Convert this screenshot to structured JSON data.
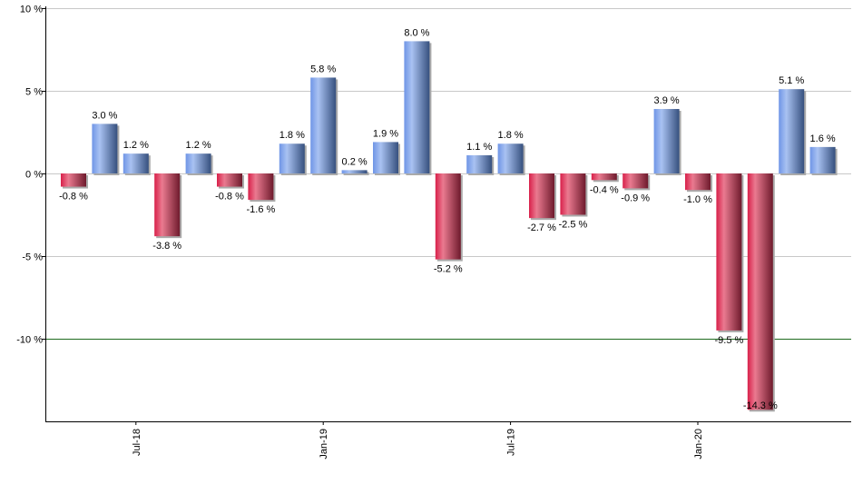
{
  "chart_data": {
    "type": "bar",
    "title": "",
    "xlabel": "",
    "ylabel": "",
    "ylim": [
      -15,
      10
    ],
    "y_ticks": [
      10,
      5,
      0,
      -5,
      -10
    ],
    "y_tick_suffix": " %",
    "grid": true,
    "categories": [
      "May-18",
      "Jun-18",
      "Jul-18",
      "Aug-18",
      "Sep-18",
      "Oct-18",
      "Nov-18",
      "Dec-18",
      "Jan-19",
      "Feb-19",
      "Mar-19",
      "Apr-19",
      "May-19",
      "Jun-19",
      "Jul-19",
      "Aug-19",
      "Sep-19",
      "Oct-19",
      "Nov-19",
      "Dec-19",
      "Jan-20",
      "Feb-20",
      "Mar-20",
      "Apr-20",
      "May-20"
    ],
    "x_tick_labels": [
      "Jul-18",
      "Jan-19",
      "Jul-19",
      "Jan-20"
    ],
    "values": [
      -0.8,
      3.0,
      1.2,
      -3.8,
      1.2,
      -0.8,
      -1.6,
      1.8,
      5.8,
      0.2,
      1.9,
      8.0,
      -5.2,
      1.1,
      1.8,
      -2.7,
      -2.5,
      -0.4,
      -0.9,
      3.9,
      -1.0,
      -9.5,
      -14.3,
      5.1,
      1.6
    ],
    "colors": {
      "positive": "#7a9de0",
      "negative": "#d8345a",
      "reference_line": "#1e6b1e"
    }
  }
}
